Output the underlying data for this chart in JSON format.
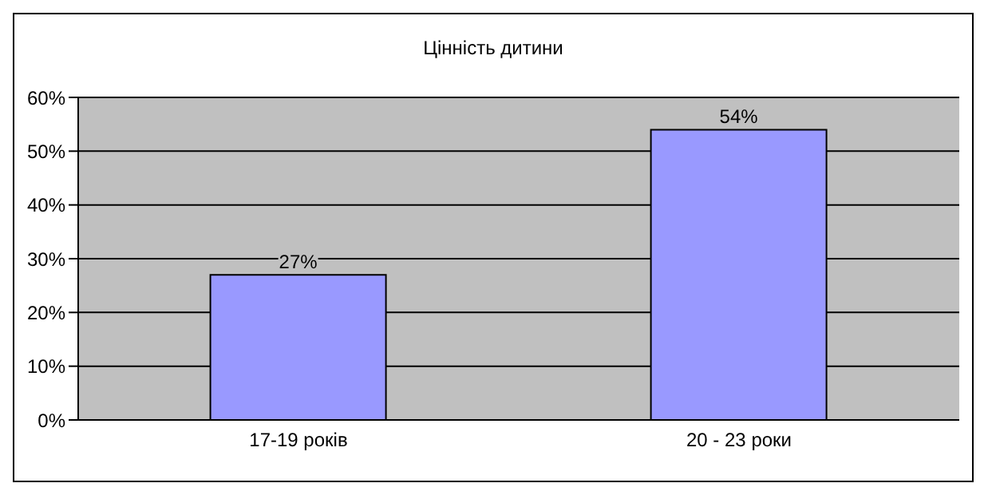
{
  "chart_data": {
    "type": "bar",
    "title": "Цінність дитини",
    "categories": [
      "17-19 років",
      "20 - 23 роки"
    ],
    "values": [
      27,
      54
    ],
    "color": "#9999ff",
    "value_labels": [
      "27%",
      "54%"
    ],
    "ylim": [
      0,
      60
    ],
    "yticks": [
      {
        "value": 0,
        "label": "0%"
      },
      {
        "value": 10,
        "label": "10%"
      },
      {
        "value": 20,
        "label": "20%"
      },
      {
        "value": 30,
        "label": "30%"
      },
      {
        "value": 40,
        "label": "40%"
      },
      {
        "value": 50,
        "label": "50%"
      },
      {
        "value": 60,
        "label": "60%"
      }
    ],
    "grid": "y"
  }
}
